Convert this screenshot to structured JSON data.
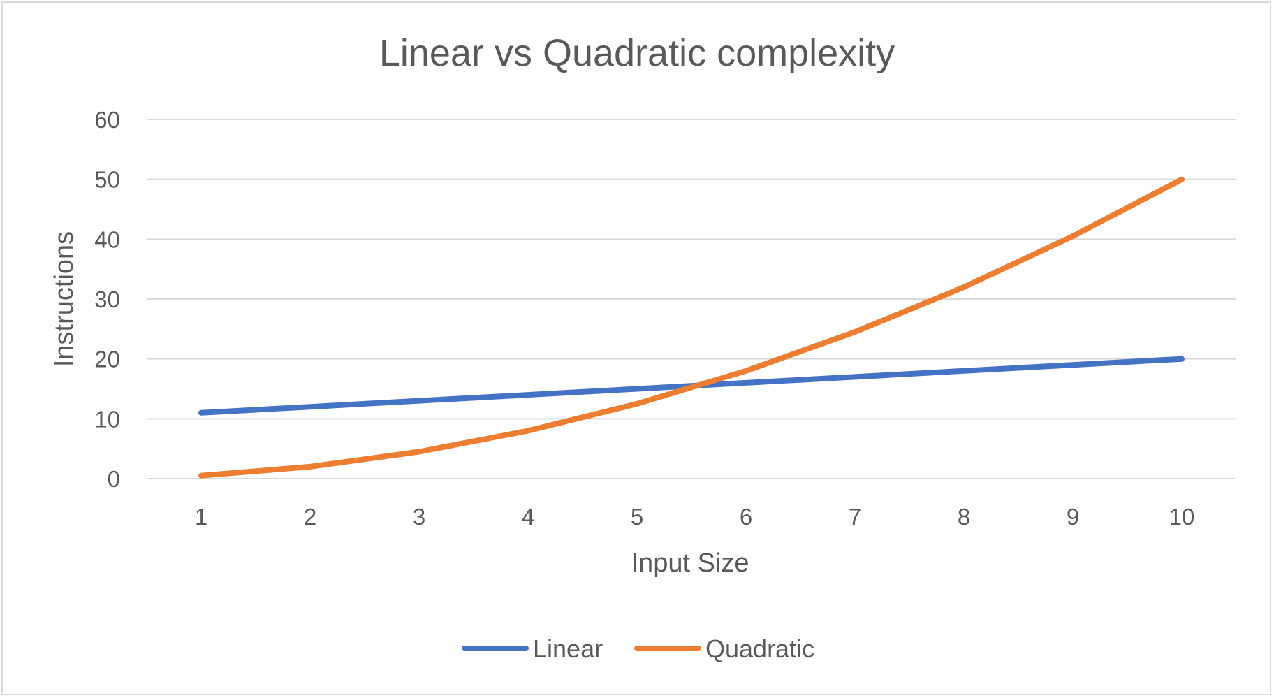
{
  "chart_data": {
    "type": "line",
    "title": "Linear vs Quadratic complexity",
    "xlabel": "Input Size",
    "ylabel": "Instructions",
    "categories": [
      "1",
      "2",
      "3",
      "4",
      "5",
      "6",
      "7",
      "8",
      "9",
      "10"
    ],
    "y_ticks": [
      "0",
      "10",
      "20",
      "30",
      "40",
      "50",
      "60"
    ],
    "ylim": [
      0,
      60
    ],
    "grid": "horizontal",
    "legend_position": "bottom",
    "series": [
      {
        "name": "Linear",
        "color": "#4472c4",
        "values": [
          11,
          12,
          13,
          14,
          15,
          16,
          17,
          18,
          19,
          20
        ]
      },
      {
        "name": "Quadratic",
        "color": "#ed7d31",
        "values": [
          0.5,
          2,
          4.5,
          8,
          12.5,
          18,
          24.5,
          32,
          40.5,
          50
        ]
      }
    ]
  }
}
